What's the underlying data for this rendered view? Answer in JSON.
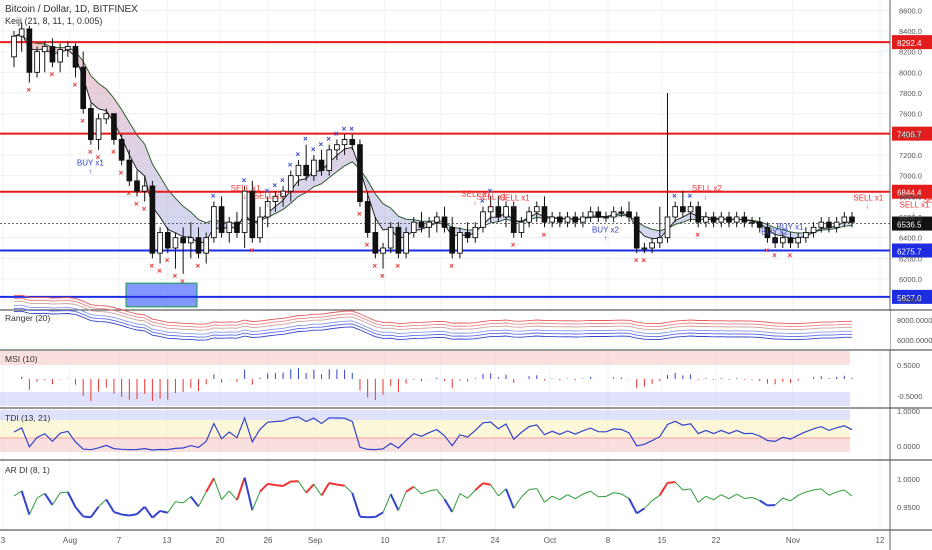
{
  "header": {
    "title": "Bitcoin / Dollar, 1D, BITFINEX",
    "indicator": "Keiji (21, 8, 11, 1, 0.005)"
  },
  "chart_data": {
    "type": "candlestick",
    "y_axis": {
      "range": [
        5700,
        8700
      ],
      "ticks": [
        "8600.0",
        "8400.0",
        "8200.0",
        "8000.0",
        "7800.0",
        "7600.0",
        "7400.0",
        "7200.0",
        "7000.0",
        "6800.0",
        "6600.0",
        "6400.0",
        "6200.0",
        "6000.0",
        "5800.0"
      ]
    },
    "x_axis": {
      "tick_labels": [
        "3",
        "Aug",
        "7",
        "13",
        "20",
        "26",
        "Sep",
        "10",
        "17",
        "24",
        "Oct",
        "8",
        "15",
        "22",
        "Nov",
        "12"
      ]
    },
    "levels": [
      {
        "value": 8292.4,
        "label": "8292.4",
        "kind": "resistance",
        "color": "#e31c1c"
      },
      {
        "value": 7406.7,
        "label": "7406.7",
        "kind": "resistance",
        "color": "#e31c1c"
      },
      {
        "value": 6844.4,
        "label": "6844.4",
        "kind": "resistance",
        "color": "#e31c1c"
      },
      {
        "value": 6275.7,
        "label": "6275.7",
        "kind": "support",
        "color": "#1c2ce3"
      },
      {
        "value": 5827.0,
        "label": "5827.0",
        "kind": "support",
        "color": "#1c2ce3"
      }
    ],
    "last_price": {
      "value": 6536.5,
      "label": "6536.5"
    },
    "candles": [
      [
        8150,
        8400,
        8050,
        8350
      ],
      [
        8350,
        8480,
        8200,
        8420
      ],
      [
        8420,
        8450,
        7900,
        8000
      ],
      [
        8000,
        8250,
        7950,
        8200
      ],
      [
        8200,
        8300,
        8000,
        8250
      ],
      [
        8250,
        8330,
        8050,
        8100
      ],
      [
        8100,
        8280,
        8000,
        8220
      ],
      [
        8220,
        8300,
        8150,
        8250
      ],
      [
        8250,
        8280,
        7950,
        8050
      ],
      [
        8050,
        8200,
        7600,
        7650
      ],
      [
        7650,
        7700,
        7300,
        7350
      ],
      [
        7350,
        7600,
        7250,
        7550
      ],
      [
        7550,
        7650,
        7500,
        7600
      ],
      [
        7600,
        7600,
        7300,
        7350
      ],
      [
        7350,
        7400,
        7100,
        7150
      ],
      [
        7150,
        7250,
        6900,
        6950
      ],
      [
        6950,
        7050,
        6800,
        6850
      ],
      [
        6850,
        7000,
        6750,
        6900
      ],
      [
        6900,
        6950,
        6200,
        6250
      ],
      [
        6250,
        6500,
        6150,
        6450
      ],
      [
        6450,
        6500,
        6250,
        6300
      ],
      [
        6300,
        6450,
        6100,
        6400
      ],
      [
        6400,
        6500,
        6050,
        6350
      ],
      [
        6350,
        6550,
        6200,
        6400
      ],
      [
        6400,
        6500,
        6200,
        6250
      ],
      [
        6250,
        6450,
        6150,
        6400
      ],
      [
        6400,
        6750,
        6350,
        6700
      ],
      [
        6700,
        6800,
        6400,
        6450
      ],
      [
        6450,
        6600,
        6350,
        6550
      ],
      [
        6550,
        6650,
        6400,
        6450
      ],
      [
        6450,
        6900,
        6300,
        6850
      ],
      [
        6850,
        6950,
        6350,
        6400
      ],
      [
        6400,
        6700,
        6350,
        6600
      ],
      [
        6600,
        6800,
        6500,
        6750
      ],
      [
        6750,
        6850,
        6650,
        6800
      ],
      [
        6800,
        6900,
        6700,
        6850
      ],
      [
        6850,
        7050,
        6750,
        7000
      ],
      [
        7000,
        7150,
        6900,
        7100
      ],
      [
        7100,
        7300,
        6950,
        7000
      ],
      [
        7000,
        7200,
        6950,
        7150
      ],
      [
        7150,
        7250,
        7000,
        7050
      ],
      [
        7050,
        7300,
        7000,
        7250
      ],
      [
        7250,
        7350,
        7150,
        7300
      ],
      [
        7300,
        7400,
        7200,
        7350
      ],
      [
        7350,
        7400,
        7250,
        7300
      ],
      [
        7300,
        7350,
        6700,
        6750
      ],
      [
        6750,
        6850,
        6400,
        6450
      ],
      [
        6450,
        6600,
        6200,
        6250
      ],
      [
        6250,
        6350,
        6100,
        6300
      ],
      [
        6300,
        6550,
        6250,
        6500
      ],
      [
        6500,
        6550,
        6200,
        6250
      ],
      [
        6250,
        6500,
        6200,
        6450
      ],
      [
        6450,
        6600,
        6400,
        6550
      ],
      [
        6550,
        6650,
        6450,
        6500
      ],
      [
        6500,
        6600,
        6400,
        6550
      ],
      [
        6550,
        6650,
        6450,
        6600
      ],
      [
        6600,
        6700,
        6450,
        6500
      ],
      [
        6500,
        6600,
        6200,
        6250
      ],
      [
        6250,
        6500,
        6200,
        6450
      ],
      [
        6450,
        6550,
        6350,
        6400
      ],
      [
        6400,
        6550,
        6350,
        6500
      ],
      [
        6500,
        6700,
        6450,
        6650
      ],
      [
        6650,
        6800,
        6550,
        6700
      ],
      [
        6700,
        6800,
        6550,
        6600
      ],
      [
        6600,
        6750,
        6500,
        6700
      ],
      [
        6700,
        6750,
        6400,
        6450
      ],
      [
        6450,
        6600,
        6400,
        6550
      ],
      [
        6550,
        6700,
        6500,
        6650
      ],
      [
        6650,
        6750,
        6550,
        6700
      ],
      [
        6700,
        6800,
        6500,
        6550
      ],
      [
        6550,
        6650,
        6500,
        6600
      ],
      [
        6600,
        6650,
        6500,
        6550
      ],
      [
        6550,
        6650,
        6500,
        6600
      ],
      [
        6600,
        6650,
        6500,
        6550
      ],
      [
        6550,
        6650,
        6500,
        6600
      ],
      [
        6600,
        6700,
        6550,
        6650
      ],
      [
        6650,
        6700,
        6550,
        6600
      ],
      [
        6600,
        6650,
        6550,
        6600
      ],
      [
        6600,
        6700,
        6550,
        6650
      ],
      [
        6650,
        6700,
        6600,
        6650
      ],
      [
        6650,
        6750,
        6550,
        6600
      ],
      [
        6600,
        6650,
        6250,
        6300
      ],
      [
        6300,
        6350,
        6250,
        6300
      ],
      [
        6300,
        6400,
        6250,
        6350
      ],
      [
        6350,
        6700,
        6300,
        6400
      ],
      [
        6400,
        7800,
        6350,
        6600
      ],
      [
        6600,
        6750,
        6550,
        6700
      ],
      [
        6700,
        6850,
        6600,
        6650
      ],
      [
        6650,
        6750,
        6550,
        6700
      ],
      [
        6700,
        6750,
        6500,
        6550
      ],
      [
        6550,
        6650,
        6500,
        6600
      ],
      [
        6600,
        6650,
        6500,
        6550
      ],
      [
        6550,
        6650,
        6500,
        6600
      ],
      [
        6600,
        6650,
        6500,
        6550
      ],
      [
        6550,
        6650,
        6500,
        6600
      ],
      [
        6600,
        6650,
        6500,
        6550
      ],
      [
        6550,
        6600,
        6500,
        6550
      ],
      [
        6550,
        6600,
        6450,
        6500
      ],
      [
        6500,
        6550,
        6350,
        6400
      ],
      [
        6400,
        6450,
        6300,
        6350
      ],
      [
        6350,
        6450,
        6300,
        6400
      ],
      [
        6400,
        6450,
        6300,
        6350
      ],
      [
        6350,
        6450,
        6300,
        6400
      ],
      [
        6400,
        6500,
        6350,
        6450
      ],
      [
        6450,
        6550,
        6400,
        6500
      ],
      [
        6500,
        6600,
        6450,
        6550
      ],
      [
        6550,
        6600,
        6450,
        6500
      ],
      [
        6500,
        6600,
        6450,
        6550
      ],
      [
        6550,
        6650,
        6500,
        6600
      ],
      [
        6600,
        6650,
        6500,
        6550
      ]
    ],
    "signals": [
      {
        "label": "BUY x1",
        "x": 10,
        "price": 7100,
        "type": "buy"
      },
      {
        "label": "SELL x1",
        "x": 30,
        "price": 6850,
        "type": "sell"
      },
      {
        "label": "SELL x1",
        "x": 33,
        "price": 6780,
        "type": "sell"
      },
      {
        "label": "SELL x1",
        "x": 60,
        "price": 6800,
        "type": "sell"
      },
      {
        "label": "SELL x1",
        "x": 62,
        "price": 6770,
        "type": "sell"
      },
      {
        "label": "SELL x1",
        "x": 65,
        "price": 6760,
        "type": "sell"
      },
      {
        "label": "BUY x2",
        "x": 77,
        "price": 6450,
        "type": "buy"
      },
      {
        "label": "SELL x2",
        "x": 90,
        "price": 6850,
        "type": "sell"
      },
      {
        "label": "BUY x1",
        "x": 101,
        "price": 6480,
        "type": "buy"
      },
      {
        "label": "BUY x2",
        "x": 99,
        "price": 6430,
        "type": "buy"
      },
      {
        "label": "SELL x1",
        "x": 111,
        "price": 6760,
        "type": "sell"
      },
      {
        "label": "SELL x1",
        "x": 117,
        "price": 6690,
        "type": "sell"
      },
      {
        "label": "SELL x2",
        "x": 120,
        "price": 6740,
        "type": "sell"
      }
    ],
    "panels": [
      {
        "name": "Ranger (20)",
        "ticks": [
          "8000.0000",
          "6000.0000"
        ]
      },
      {
        "name": "MSI (10)",
        "ticks": [
          "0.5000",
          "-0.5000"
        ]
      },
      {
        "name": "TDI (13, 21)",
        "ticks": [
          "1.0000",
          "0.0000"
        ]
      },
      {
        "name": "AR DI (8, 1)",
        "ticks": [
          "1.0000",
          "0.9500"
        ]
      }
    ]
  }
}
